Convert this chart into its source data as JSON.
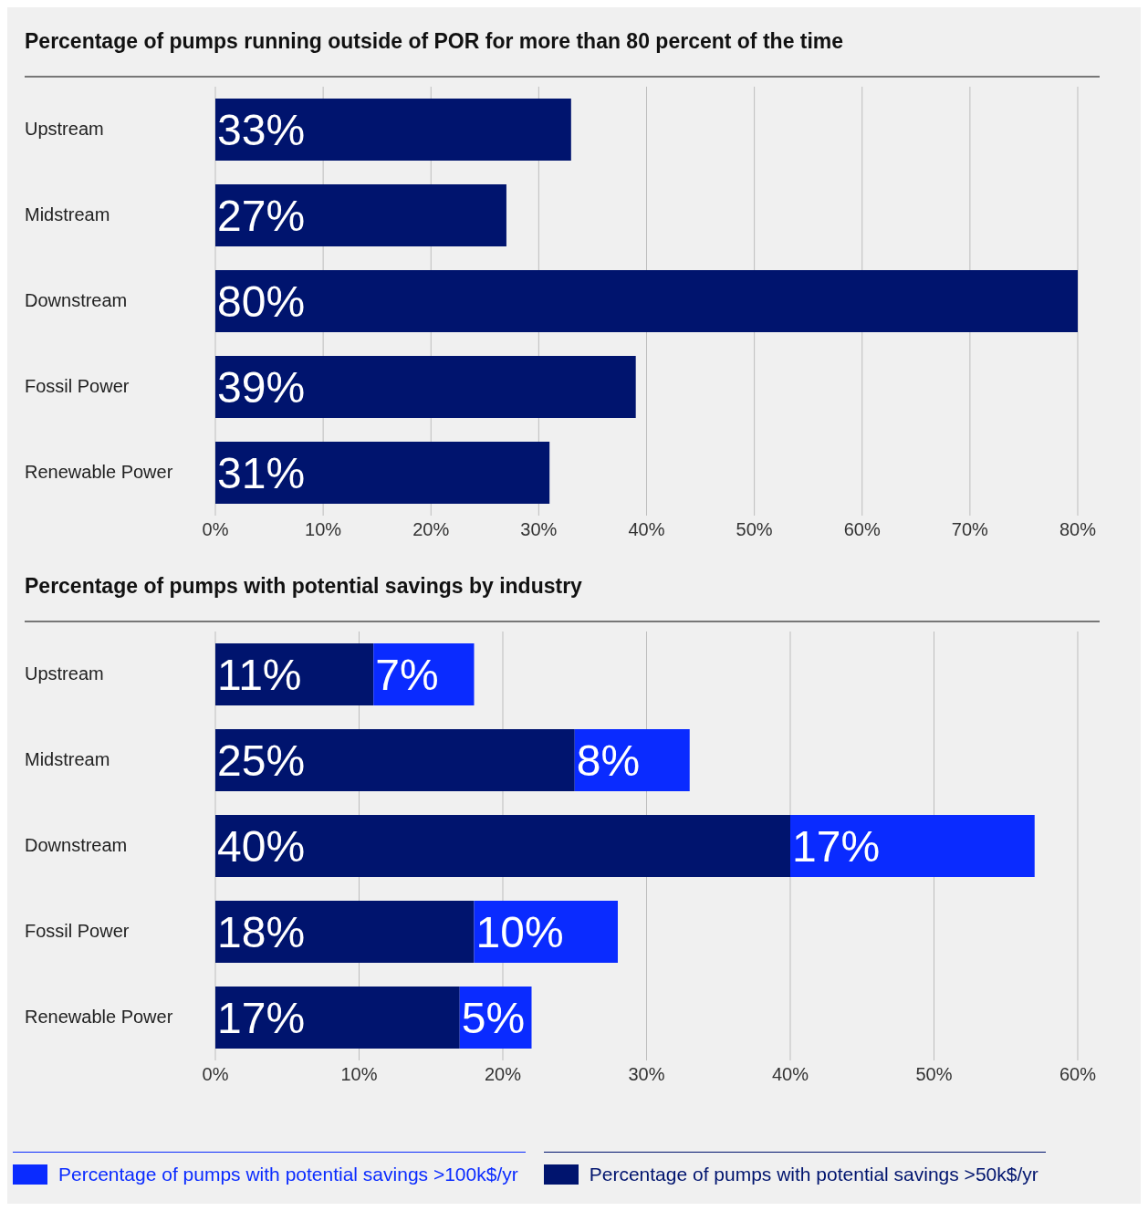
{
  "chart_data": [
    {
      "type": "bar",
      "orientation": "horizontal",
      "title": "Percentage of pumps running outside of POR for more than 80 percent of the time",
      "categories": [
        "Upstream",
        "Midstream",
        "Downstream",
        "Fossil Power",
        "Renewable Power"
      ],
      "series": [
        {
          "color": "#00146e",
          "values": [
            33,
            27,
            80,
            39,
            31
          ],
          "value_labels": [
            "33%",
            "27%",
            "80%",
            "39%",
            "31%"
          ]
        }
      ],
      "xlim": [
        0,
        80
      ],
      "xticks": [
        {
          "value": 0,
          "label": "0%"
        },
        {
          "value": 10,
          "label": "10%"
        },
        {
          "value": 20,
          "label": "20%"
        },
        {
          "value": 30,
          "label": "30%"
        },
        {
          "value": 40,
          "label": "40%"
        },
        {
          "value": 50,
          "label": "50%"
        },
        {
          "value": 60,
          "label": "60%"
        },
        {
          "value": 70,
          "label": "70%"
        },
        {
          "value": 80,
          "label": "80%"
        }
      ],
      "grid": "x",
      "legend": false
    },
    {
      "type": "bar",
      "orientation": "horizontal",
      "stacked": true,
      "title": "Percentage of pumps with potential savings by industry",
      "categories": [
        "Upstream",
        "Midstream",
        "Downstream",
        "Fossil Power",
        "Renewable Power"
      ],
      "series": [
        {
          "name": "Percentage of pumps with potential savings >50k$/yr",
          "color": "#00146e",
          "values": [
            11,
            25,
            40,
            18,
            17
          ],
          "value_labels": [
            "11%",
            "25%",
            "40%",
            "18%",
            "17%"
          ]
        },
        {
          "name": "Percentage of pumps with potential savings >100k$/yr",
          "color": "#0a2bff",
          "values": [
            7,
            8,
            17,
            10,
            5
          ],
          "value_labels": [
            "7%",
            "8%",
            "17%",
            "10%",
            "5%"
          ]
        }
      ],
      "xlim": [
        0,
        60
      ],
      "xticks": [
        {
          "value": 0,
          "label": "0%"
        },
        {
          "value": 10,
          "label": "10%"
        },
        {
          "value": 20,
          "label": "20%"
        },
        {
          "value": 30,
          "label": "30%"
        },
        {
          "value": 40,
          "label": "40%"
        },
        {
          "value": 50,
          "label": "50%"
        },
        {
          "value": 60,
          "label": "60%"
        }
      ],
      "grid": "x",
      "legend": "bottom"
    }
  ]
}
